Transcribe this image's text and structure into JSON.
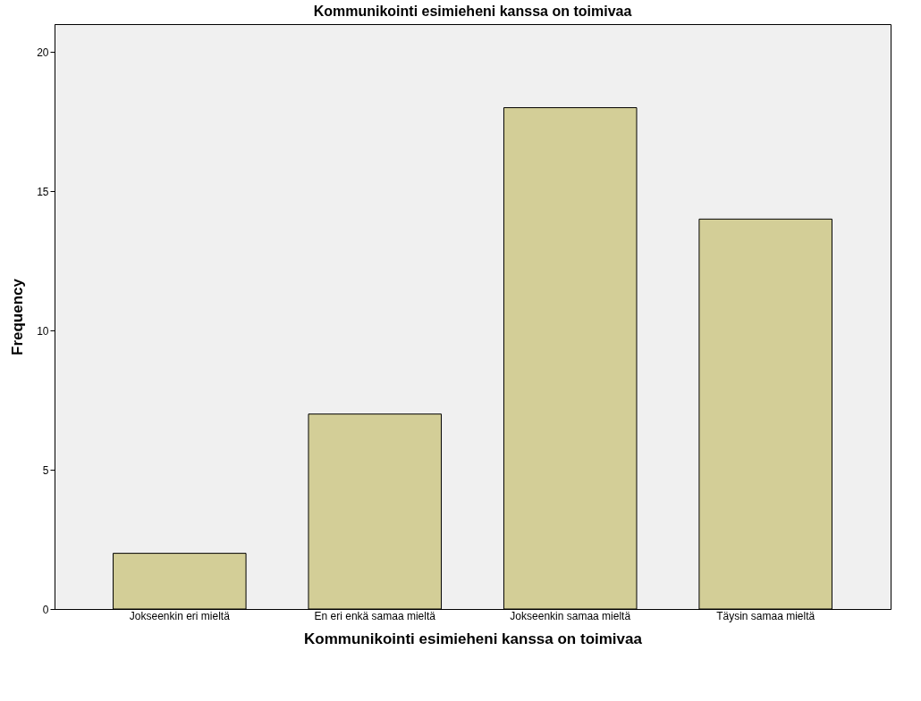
{
  "chart_data": {
    "type": "bar",
    "title": "Kommunikointi esimieheni kanssa on toimivaa",
    "xlabel": "Kommunikointi esimieheni kanssa on toimivaa",
    "ylabel": "Frequency",
    "categories": [
      "Jokseenkin eri mieltä",
      "En eri enkä samaa mieltä",
      "Jokseenkin samaa mieltä",
      "Täysin samaa mieltä"
    ],
    "values": [
      2,
      7,
      18,
      14
    ],
    "color": "#d3ce97",
    "ylim": [
      0,
      21
    ],
    "yticks": [
      0,
      5,
      10,
      15,
      20
    ],
    "grid": false
  }
}
